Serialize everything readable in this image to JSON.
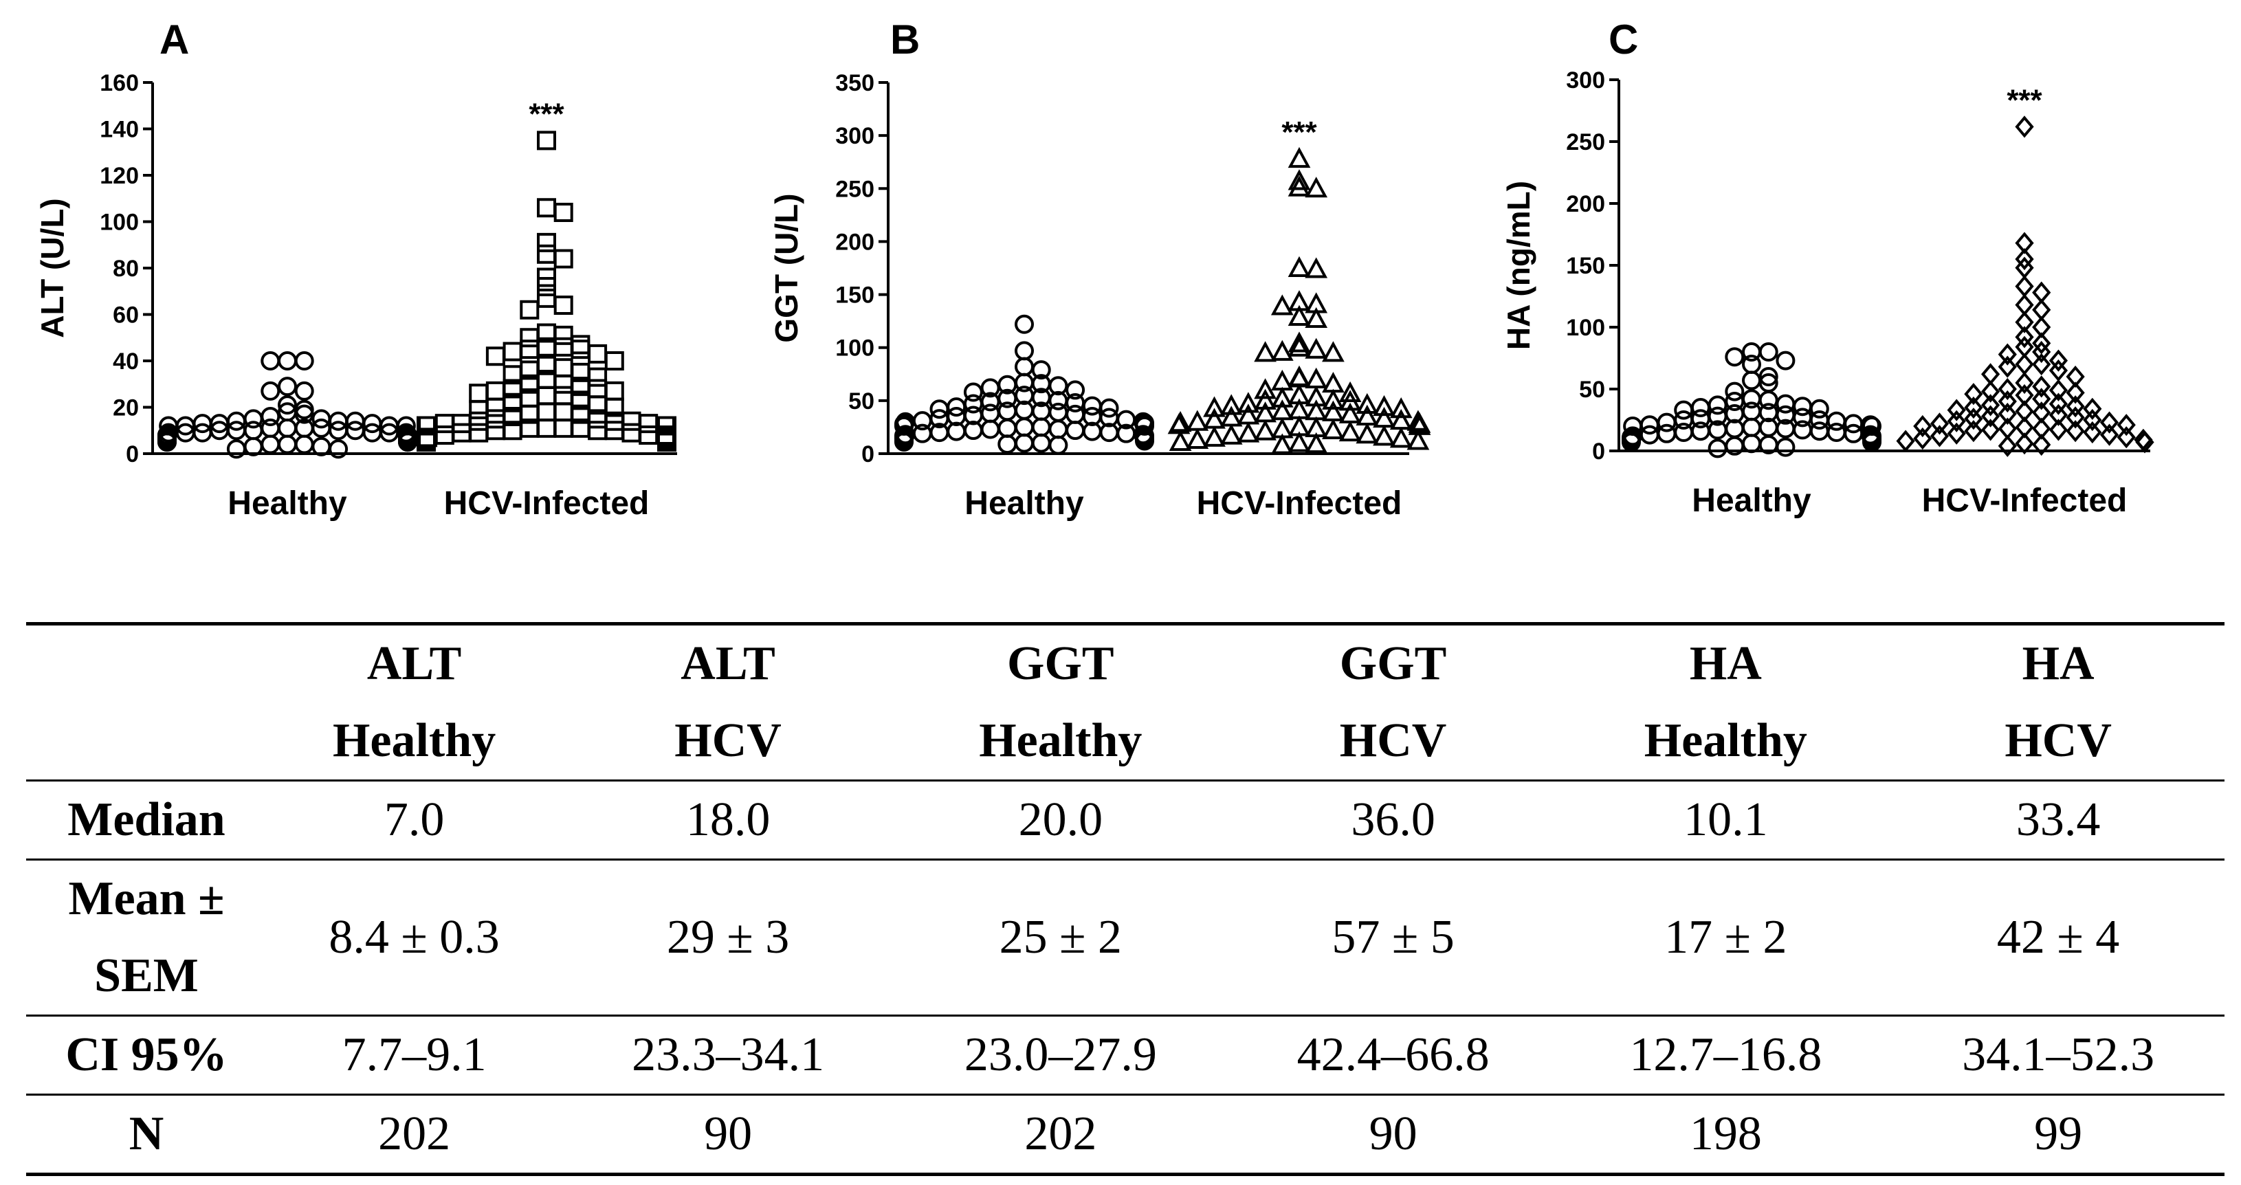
{
  "chart_data": [
    {
      "type": "scatter",
      "panel": "A",
      "ylabel": "ALT  (U/L)",
      "ylim": [
        0,
        160
      ],
      "yticks": [
        0,
        20,
        40,
        60,
        80,
        100,
        120,
        140,
        160
      ],
      "categories": [
        "Healthy",
        "HCV-Infected"
      ],
      "marker": "circle-square",
      "significance": "***",
      "significance_over": "HCV-Infected",
      "series": [
        {
          "name": "Healthy",
          "marker": "circle",
          "values": [
            40,
            40,
            40,
            29,
            27,
            27,
            21,
            19,
            18,
            17,
            16,
            15,
            15,
            14,
            14,
            14,
            13,
            13,
            13,
            12,
            12,
            12,
            12,
            11,
            11,
            11,
            11,
            10,
            10,
            10,
            10,
            10,
            9,
            9,
            9,
            9,
            9,
            9,
            8,
            8,
            8,
            8,
            8,
            8,
            8,
            7,
            7,
            7,
            7,
            7,
            7,
            7,
            7,
            6,
            6,
            6,
            6,
            6,
            6,
            5,
            5,
            5,
            5,
            4,
            4,
            4,
            3,
            3,
            2,
            2
          ]
        },
        {
          "name": "HCV-Infected",
          "marker": "square",
          "values": [
            135,
            106,
            104,
            91,
            86,
            84,
            76,
            72,
            67,
            64,
            62,
            52,
            51,
            50,
            47,
            46,
            46,
            45,
            45,
            44,
            43,
            42,
            40,
            38,
            37,
            36,
            35,
            34,
            33,
            32,
            30,
            30,
            29,
            28,
            28,
            27,
            27,
            26,
            25,
            25,
            24,
            23,
            22,
            21,
            20,
            20,
            19,
            18,
            18,
            17,
            17,
            16,
            15,
            15,
            14,
            14,
            14,
            13,
            13,
            13,
            12,
            12,
            12,
            12,
            11,
            11,
            11,
            11,
            10,
            10,
            10,
            10,
            9,
            9,
            9,
            8,
            8,
            8,
            7,
            7,
            6,
            6,
            5,
            5
          ]
        }
      ]
    },
    {
      "type": "scatter",
      "panel": "B",
      "ylabel": "GGT (U/L)",
      "ylim": [
        0,
        350
      ],
      "yticks": [
        0,
        50,
        100,
        150,
        200,
        250,
        300,
        350
      ],
      "categories": [
        "Healthy",
        "HCV-Infected"
      ],
      "significance": "***",
      "significance_over": "HCV-Infected",
      "series": [
        {
          "name": "Healthy",
          "marker": "circle",
          "values": [
            122,
            97,
            82,
            79,
            67,
            66,
            65,
            64,
            62,
            60,
            58,
            55,
            53,
            52,
            50,
            49,
            48,
            47,
            45,
            44,
            43,
            42,
            41,
            40,
            40,
            39,
            38,
            37,
            36,
            35,
            35,
            34,
            33,
            32,
            31,
            30,
            30,
            29,
            28,
            28,
            27,
            26,
            26,
            25,
            25,
            24,
            23,
            23,
            22,
            22,
            21,
            21,
            20,
            20,
            19,
            19,
            18,
            18,
            17,
            17,
            16,
            16,
            15,
            15,
            14,
            14,
            13,
            12,
            12,
            11,
            10,
            10,
            9,
            8
          ]
        },
        {
          "name": "HCV-Infected",
          "marker": "triangle",
          "values": [
            278,
            257,
            251,
            250,
            175,
            174,
            143,
            141,
            139,
            129,
            127,
            104,
            100,
            98,
            96,
            95,
            95,
            72,
            71,
            70,
            68,
            66,
            60,
            57,
            55,
            53,
            52,
            50,
            50,
            49,
            47,
            46,
            45,
            44,
            43,
            42,
            41,
            40,
            40,
            39,
            38,
            37,
            36,
            35,
            34,
            33,
            32,
            31,
            30,
            30,
            29,
            28,
            27,
            26,
            25,
            24,
            23,
            22,
            21,
            20,
            19,
            18,
            17,
            16,
            15,
            14,
            13,
            12,
            11,
            10,
            9,
            8
          ]
        }
      ]
    },
    {
      "type": "scatter",
      "panel": "C",
      "ylabel": "HA (ng/mL)",
      "ylim": [
        0,
        300
      ],
      "yticks": [
        0,
        50,
        100,
        150,
        200,
        250,
        300
      ],
      "categories": [
        "Healthy",
        "HCV-Infected"
      ],
      "significance": "***",
      "significance_over": "HCV-Infected",
      "series": [
        {
          "name": "Healthy",
          "marker": "circle",
          "values": [
            80,
            80,
            76,
            73,
            70,
            60,
            57,
            55,
            48,
            42,
            41,
            40,
            38,
            37,
            36,
            35,
            34,
            33,
            32,
            31,
            30,
            29,
            28,
            27,
            26,
            25,
            25,
            24,
            23,
            22,
            21,
            21,
            20,
            20,
            19,
            19,
            18,
            18,
            17,
            17,
            16,
            16,
            15,
            15,
            14,
            14,
            13,
            13,
            12,
            12,
            11,
            11,
            10,
            10,
            9,
            9,
            8,
            8,
            7,
            7,
            6,
            5,
            4,
            3,
            2
          ]
        },
        {
          "name": "HCV-Infected",
          "marker": "diamond",
          "values": [
            262,
            168,
            155,
            148,
            133,
            128,
            118,
            114,
            104,
            100,
            92,
            87,
            84,
            80,
            78,
            73,
            70,
            70,
            68,
            65,
            62,
            60,
            55,
            52,
            50,
            49,
            48,
            47,
            46,
            45,
            42,
            40,
            38,
            37,
            36,
            35,
            34,
            33,
            32,
            31,
            30,
            29,
            28,
            27,
            26,
            25,
            24,
            23,
            22,
            21,
            20,
            19,
            18,
            18,
            17,
            17,
            16,
            16,
            15,
            14,
            13,
            12,
            11,
            10,
            9,
            8,
            7,
            6,
            5,
            4
          ]
        }
      ]
    }
  ],
  "table": {
    "columns": [
      [
        "ALT",
        "Healthy"
      ],
      [
        "ALT",
        "HCV"
      ],
      [
        "GGT",
        "Healthy"
      ],
      [
        "GGT",
        "HCV"
      ],
      [
        "HA",
        "Healthy"
      ],
      [
        "HA",
        "HCV"
      ]
    ],
    "rows": [
      {
        "label": "Median",
        "cells": [
          "7.0",
          "18.0",
          "20.0",
          "36.0",
          "10.1",
          "33.4"
        ]
      },
      {
        "label": "Mean ± SEM",
        "cells": [
          "8.4 ± 0.3",
          "29 ± 3",
          "25 ± 2",
          "57 ± 5",
          "17 ± 2",
          "42 ± 4"
        ]
      },
      {
        "label": "CI 95%",
        "cells": [
          "7.7–9.1",
          "23.3–34.1",
          "23.0–27.9",
          "42.4–66.8",
          "12.7–16.8",
          "34.1–52.3"
        ]
      },
      {
        "label": "N",
        "cells": [
          "202",
          "90",
          "202",
          "90",
          "198",
          "99"
        ]
      }
    ]
  }
}
